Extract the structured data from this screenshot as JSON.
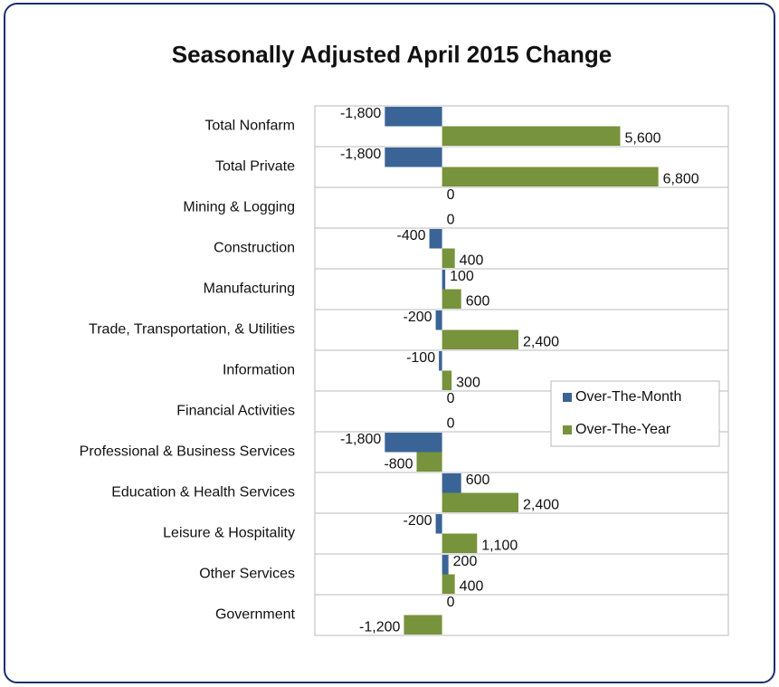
{
  "chart_data": {
    "type": "hbar",
    "title": "Seasonally Adjusted April 2015 Change",
    "categories": [
      "Total Nonfarm",
      "Total Private",
      "Mining & Logging",
      "Construction",
      "Manufacturing",
      "Trade, Transportation, & Utilities",
      "Information",
      "Financial Activities",
      "Professional & Business Services",
      "Education & Health Services",
      "Leisure & Hospitality",
      "Other Services",
      "Government"
    ],
    "series": [
      {
        "name": "Over-The-Month",
        "color": "#3a6496",
        "values": [
          -1800,
          -1800,
          0,
          -400,
          100,
          -200,
          -100,
          0,
          -1800,
          600,
          -200,
          200,
          0
        ],
        "value_labels": [
          "-1,800",
          "-1,800",
          "0",
          "-400",
          "100",
          "-200",
          "-100",
          "0",
          "-1,800",
          "600",
          "-200",
          "200",
          "0"
        ]
      },
      {
        "name": "Over-The-Year",
        "color": "#77933c",
        "values": [
          5600,
          6800,
          0,
          400,
          600,
          2400,
          300,
          0,
          -800,
          2400,
          1100,
          400,
          -1200
        ],
        "value_labels": [
          "5,600",
          "6,800",
          "0",
          "400",
          "600",
          "2,400",
          "300",
          "0",
          "-800",
          "2,400",
          "1,100",
          "400",
          "-1,200"
        ]
      }
    ],
    "xlim": [
      -4000,
      9000
    ],
    "legend": "right"
  }
}
